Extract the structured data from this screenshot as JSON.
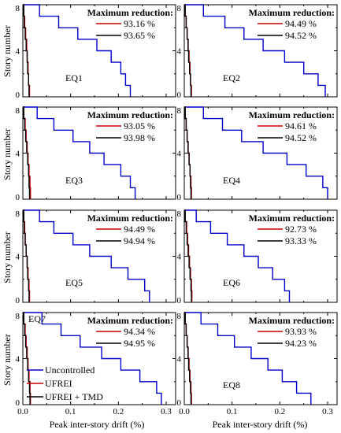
{
  "figure": {
    "ylabel": "Story number",
    "xlabel": "Peak inter-story drift (%)",
    "legend_title": "Maximum reduction:",
    "x_ticks": [
      "0.0",
      "0.1",
      "0.2",
      "0.3"
    ],
    "y_ticks": [
      "0",
      "4",
      "8"
    ]
  },
  "chart_data": [
    {
      "type": "line",
      "panel": "EQ1",
      "xlim": [
        0,
        0.3
      ],
      "ylim": [
        0,
        8
      ],
      "reductions": {
        "UFREI": "93.16 %",
        "UFREI + TMD": "93.65 %"
      },
      "series": [
        {
          "name": "Uncontrolled",
          "color": "#0000cc",
          "x": [
            0.225,
            0.215,
            0.205,
            0.185,
            0.155,
            0.115,
            0.075,
            0.035,
            0.0
          ],
          "y": [
            0,
            1,
            2,
            3,
            4,
            5,
            6,
            7,
            8
          ]
        },
        {
          "name": "UFREI",
          "color": "#cc0000",
          "x": [
            0.014,
            0.012,
            0.011,
            0.009,
            0.008,
            0.006,
            0.004,
            0.002,
            0.0
          ],
          "y": [
            0,
            1,
            2,
            3,
            4,
            5,
            6,
            7,
            8
          ]
        },
        {
          "name": "UFREI + TMD",
          "color": "#000000",
          "x": [
            0.013,
            0.012,
            0.01,
            0.009,
            0.007,
            0.005,
            0.003,
            0.002,
            0.0
          ],
          "y": [
            0,
            1,
            2,
            3,
            4,
            5,
            6,
            7,
            8
          ]
        }
      ]
    },
    {
      "type": "line",
      "panel": "EQ2",
      "xlim": [
        0,
        0.3
      ],
      "ylim": [
        0,
        8
      ],
      "reductions": {
        "UFREI": "94.49 %",
        "UFREI + TMD": "94.52 %"
      },
      "series": [
        {
          "name": "Uncontrolled",
          "color": "#0000cc",
          "x": [
            0.295,
            0.28,
            0.25,
            0.21,
            0.165,
            0.125,
            0.085,
            0.04,
            0.0
          ],
          "y": [
            0,
            1,
            2,
            3,
            4,
            5,
            6,
            7,
            8
          ]
        },
        {
          "name": "UFREI",
          "color": "#cc0000",
          "x": [
            0.015,
            0.013,
            0.012,
            0.01,
            0.008,
            0.006,
            0.004,
            0.002,
            0.0
          ],
          "y": [
            0,
            1,
            2,
            3,
            4,
            5,
            6,
            7,
            8
          ]
        },
        {
          "name": "UFREI + TMD",
          "color": "#000000",
          "x": [
            0.014,
            0.013,
            0.011,
            0.009,
            0.008,
            0.006,
            0.004,
            0.002,
            0.0
          ],
          "y": [
            0,
            1,
            2,
            3,
            4,
            5,
            6,
            7,
            8
          ]
        }
      ]
    },
    {
      "type": "line",
      "panel": "EQ3",
      "xlim": [
        0,
        0.3
      ],
      "ylim": [
        0,
        8
      ],
      "reductions": {
        "UFREI": "93.05 %",
        "UFREI + TMD": "93.98 %"
      },
      "series": [
        {
          "name": "Uncontrolled",
          "color": "#0000cc",
          "x": [
            0.235,
            0.225,
            0.205,
            0.17,
            0.14,
            0.105,
            0.065,
            0.03,
            0.0
          ],
          "y": [
            0,
            1,
            2,
            3,
            4,
            5,
            6,
            7,
            8
          ]
        },
        {
          "name": "UFREI",
          "color": "#cc0000",
          "x": [
            0.016,
            0.015,
            0.013,
            0.011,
            0.009,
            0.007,
            0.005,
            0.002,
            0.0
          ],
          "y": [
            0,
            1,
            2,
            3,
            4,
            5,
            6,
            7,
            8
          ]
        },
        {
          "name": "UFREI + TMD",
          "color": "#000000",
          "x": [
            0.014,
            0.013,
            0.012,
            0.01,
            0.008,
            0.006,
            0.004,
            0.002,
            0.0
          ],
          "y": [
            0,
            1,
            2,
            3,
            4,
            5,
            6,
            7,
            8
          ]
        }
      ]
    },
    {
      "type": "line",
      "panel": "EQ4",
      "xlim": [
        0,
        0.3
      ],
      "ylim": [
        0,
        8
      ],
      "reductions": {
        "UFREI": "94.61 %",
        "UFREI + TMD": "94.52 %"
      },
      "series": [
        {
          "name": "Uncontrolled",
          "color": "#0000cc",
          "x": [
            0.3,
            0.29,
            0.255,
            0.215,
            0.165,
            0.12,
            0.08,
            0.04,
            0.0
          ],
          "y": [
            0,
            1,
            2,
            3,
            4,
            5,
            6,
            7,
            8
          ]
        },
        {
          "name": "UFREI",
          "color": "#cc0000",
          "x": [
            0.015,
            0.014,
            0.012,
            0.01,
            0.008,
            0.006,
            0.004,
            0.002,
            0.0
          ],
          "y": [
            0,
            1,
            2,
            3,
            4,
            5,
            6,
            7,
            8
          ]
        },
        {
          "name": "UFREI + TMD",
          "color": "#000000",
          "x": [
            0.014,
            0.013,
            0.012,
            0.01,
            0.008,
            0.006,
            0.004,
            0.002,
            0.0
          ],
          "y": [
            0,
            1,
            2,
            3,
            4,
            5,
            6,
            7,
            8
          ]
        }
      ]
    },
    {
      "type": "line",
      "panel": "EQ5",
      "xlim": [
        0,
        0.3
      ],
      "ylim": [
        0,
        8
      ],
      "reductions": {
        "UFREI": "94.49 %",
        "UFREI + TMD": "94.94 %"
      },
      "series": [
        {
          "name": "Uncontrolled",
          "color": "#0000cc",
          "x": [
            0.265,
            0.255,
            0.22,
            0.185,
            0.14,
            0.105,
            0.065,
            0.035,
            0.0
          ],
          "y": [
            0,
            1,
            2,
            3,
            4,
            5,
            6,
            7,
            8
          ]
        },
        {
          "name": "UFREI",
          "color": "#cc0000",
          "x": [
            0.014,
            0.013,
            0.011,
            0.009,
            0.007,
            0.005,
            0.004,
            0.002,
            0.0
          ],
          "y": [
            0,
            1,
            2,
            3,
            4,
            5,
            6,
            7,
            8
          ]
        },
        {
          "name": "UFREI + TMD",
          "color": "#000000",
          "x": [
            0.013,
            0.012,
            0.01,
            0.009,
            0.007,
            0.005,
            0.003,
            0.002,
            0.0
          ],
          "y": [
            0,
            1,
            2,
            3,
            4,
            5,
            6,
            7,
            8
          ]
        }
      ]
    },
    {
      "type": "line",
      "panel": "EQ6",
      "xlim": [
        0,
        0.3
      ],
      "ylim": [
        0,
        8
      ],
      "reductions": {
        "UFREI": "92.73 %",
        "UFREI + TMD": "93.33 %"
      },
      "series": [
        {
          "name": "Uncontrolled",
          "color": "#0000cc",
          "x": [
            0.22,
            0.21,
            0.185,
            0.155,
            0.125,
            0.09,
            0.055,
            0.025,
            0.0
          ],
          "y": [
            0,
            1,
            2,
            3,
            4,
            5,
            6,
            7,
            8
          ]
        },
        {
          "name": "UFREI",
          "color": "#cc0000",
          "x": [
            0.016,
            0.015,
            0.013,
            0.011,
            0.009,
            0.007,
            0.005,
            0.002,
            0.0
          ],
          "y": [
            0,
            1,
            2,
            3,
            4,
            5,
            6,
            7,
            8
          ]
        },
        {
          "name": "UFREI + TMD",
          "color": "#000000",
          "x": [
            0.015,
            0.014,
            0.012,
            0.01,
            0.008,
            0.006,
            0.004,
            0.002,
            0.0
          ],
          "y": [
            0,
            1,
            2,
            3,
            4,
            5,
            6,
            7,
            8
          ]
        }
      ]
    },
    {
      "type": "line",
      "panel": "EQ7",
      "xlim": [
        0,
        0.3
      ],
      "ylim": [
        0,
        8
      ],
      "reductions": {
        "UFREI": "94.34 %",
        "UFREI + TMD": "94.95 %"
      },
      "series": [
        {
          "name": "Uncontrolled",
          "color": "#0000cc",
          "x": [
            0.29,
            0.28,
            0.245,
            0.205,
            0.165,
            0.12,
            0.08,
            0.04,
            0.0
          ],
          "y": [
            0,
            1,
            2,
            3,
            4,
            5,
            6,
            7,
            8
          ]
        },
        {
          "name": "UFREI",
          "color": "#cc0000",
          "x": [
            0.016,
            0.015,
            0.013,
            0.011,
            0.009,
            0.007,
            0.005,
            0.002,
            0.0
          ],
          "y": [
            0,
            1,
            2,
            3,
            4,
            5,
            6,
            7,
            8
          ]
        },
        {
          "name": "UFREI + TMD",
          "color": "#000000",
          "x": [
            0.015,
            0.014,
            0.012,
            0.01,
            0.008,
            0.006,
            0.004,
            0.002,
            0.0
          ],
          "y": [
            0,
            1,
            2,
            3,
            4,
            5,
            6,
            7,
            8
          ]
        }
      ]
    },
    {
      "type": "line",
      "panel": "EQ8",
      "xlim": [
        0,
        0.3
      ],
      "ylim": [
        0,
        8
      ],
      "reductions": {
        "UFREI": "93.93 %",
        "UFREI + TMD": "94.23 %"
      },
      "series": [
        {
          "name": "Uncontrolled",
          "color": "#0000cc",
          "x": [
            0.265,
            0.235,
            0.205,
            0.175,
            0.14,
            0.105,
            0.07,
            0.035,
            0.0
          ],
          "y": [
            0,
            1,
            2,
            3,
            4,
            5,
            6,
            7,
            8
          ]
        },
        {
          "name": "UFREI",
          "color": "#cc0000",
          "x": [
            0.015,
            0.014,
            0.012,
            0.01,
            0.008,
            0.006,
            0.004,
            0.002,
            0.0
          ],
          "y": [
            0,
            1,
            2,
            3,
            4,
            5,
            6,
            7,
            8
          ]
        },
        {
          "name": "UFREI + TMD",
          "color": "#000000",
          "x": [
            0.014,
            0.013,
            0.011,
            0.009,
            0.008,
            0.006,
            0.004,
            0.002,
            0.0
          ],
          "y": [
            0,
            1,
            2,
            3,
            4,
            5,
            6,
            7,
            8
          ]
        }
      ]
    }
  ],
  "legend_entries": [
    {
      "label": "Uncontrolled",
      "color": "#0000cc"
    },
    {
      "label": "UFREI",
      "color": "#cc0000"
    },
    {
      "label": "UFREI + TMD",
      "color": "#000000"
    }
  ]
}
